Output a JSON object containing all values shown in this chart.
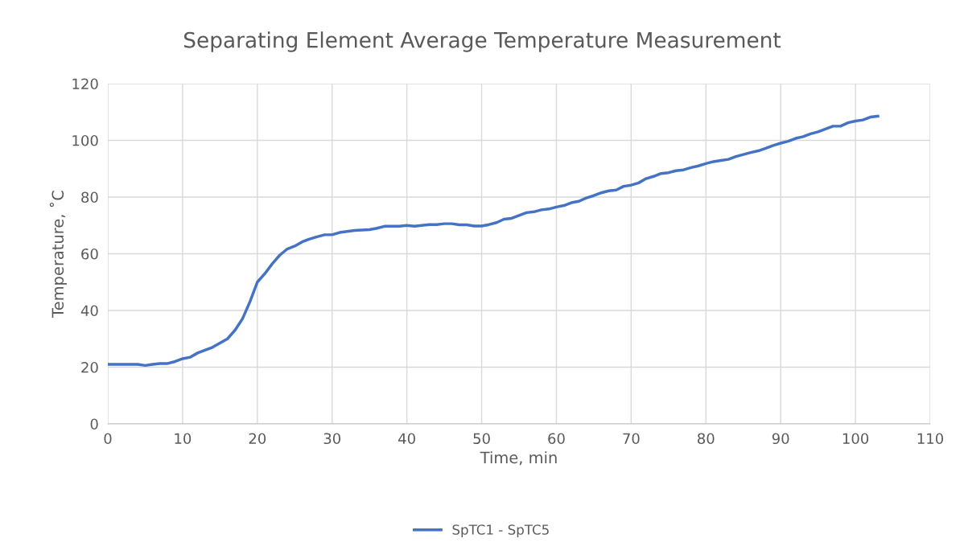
{
  "chart_data": {
    "type": "line",
    "title": "Separating Element Average Temperature Measurement",
    "xlabel": "Time, min",
    "ylabel": "Temperature, ˚C",
    "x": [
      0,
      4,
      5,
      6,
      7,
      8,
      9,
      10,
      11,
      12,
      14,
      16,
      17,
      18,
      19,
      20,
      21,
      22,
      23,
      24,
      25,
      26,
      27,
      28,
      29,
      30,
      31,
      33,
      35,
      36,
      37,
      39,
      40,
      41,
      43,
      44,
      45,
      46,
      47,
      48,
      49,
      50,
      51,
      52,
      53,
      54,
      55,
      56,
      57,
      58,
      59,
      60,
      61,
      62,
      63,
      64,
      65,
      66,
      67,
      68,
      69,
      70,
      71,
      72,
      73,
      74,
      75,
      76,
      77,
      78,
      79,
      80,
      81,
      82,
      83,
      84,
      85,
      86,
      87,
      88,
      89,
      90,
      91,
      92,
      93,
      94,
      95,
      96,
      97,
      98,
      99,
      100,
      101,
      102,
      103
    ],
    "series": [
      {
        "name": "SpTC1 - SpTC5",
        "color": "#4472c4",
        "values": [
          21,
          21,
          20.6,
          21,
          21.3,
          21.3,
          22,
          23,
          23.5,
          25,
          27,
          30,
          33,
          37,
          43,
          50,
          53,
          56.5,
          59.5,
          61.7,
          62.7,
          64.2,
          65.2,
          66,
          66.7,
          66.7,
          67.5,
          68.2,
          68.5,
          69,
          69.7,
          69.7,
          70,
          69.7,
          70.3,
          70.3,
          70.6,
          70.6,
          70.2,
          70.2,
          69.8,
          69.8,
          70.3,
          71,
          72.2,
          72.5,
          73.5,
          74.5,
          74.8,
          75.5,
          75.8,
          76.5,
          77,
          78,
          78.5,
          79.7,
          80.5,
          81.5,
          82.2,
          82.5,
          83.8,
          84.2,
          85,
          86.5,
          87.3,
          88.3,
          88.6,
          89.3,
          89.6,
          90.4,
          91,
          91.8,
          92.5,
          92.9,
          93.3,
          94.3,
          95,
          95.7,
          96.3,
          97.2,
          98.2,
          99,
          99.7,
          100.7,
          101.3,
          102.3,
          103,
          104,
          105,
          105,
          106.2,
          106.8,
          107.2,
          108.2,
          108.5
        ]
      }
    ],
    "xlim": [
      0,
      110
    ],
    "xticks": [
      0,
      10,
      20,
      30,
      40,
      50,
      60,
      70,
      80,
      90,
      100,
      110
    ],
    "ylim": [
      0,
      120
    ],
    "yticks": [
      0,
      20,
      40,
      60,
      80,
      100,
      120
    ],
    "grid": true,
    "legend": "bottom",
    "marker": "none",
    "line_style": "solid"
  }
}
